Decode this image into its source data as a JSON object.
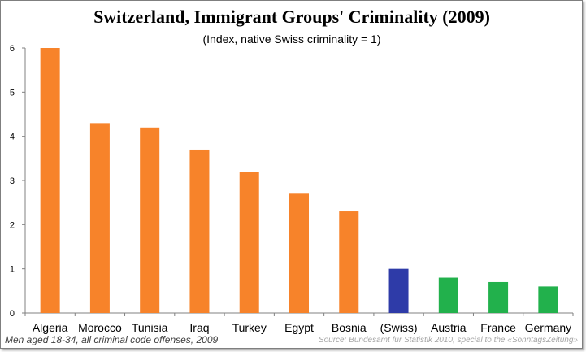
{
  "chart_data": {
    "type": "bar",
    "title": "Switzerland, Immigrant Groups' Criminality (2009)",
    "subtitle": "(Index, native Swiss criminality = 1)",
    "categories": [
      "Algeria",
      "Morocco",
      "Tunisia",
      "Iraq",
      "Turkey",
      "Egypt",
      "Bosnia",
      "(Swiss)",
      "Austria",
      "France",
      "Germany"
    ],
    "values": [
      6.0,
      4.3,
      4.2,
      3.7,
      3.2,
      2.7,
      2.3,
      1.0,
      0.8,
      0.7,
      0.6
    ],
    "bar_colors": [
      "#f7832a",
      "#f7832a",
      "#f7832a",
      "#f7832a",
      "#f7832a",
      "#f7832a",
      "#f7832a",
      "#2e3ba8",
      "#22b14c",
      "#22b14c",
      "#22b14c"
    ],
    "ylim": [
      0,
      6
    ],
    "yticks": [
      "0",
      "1",
      "2",
      "3",
      "4",
      "5",
      "6"
    ],
    "grid": false,
    "xlabel": "",
    "ylabel": "",
    "note": "Men aged 18-34, all criminal code offenses, 2009",
    "source": "Source: Bundesamt für Statistik 2010, special to the «SonntagsZeitung»"
  }
}
